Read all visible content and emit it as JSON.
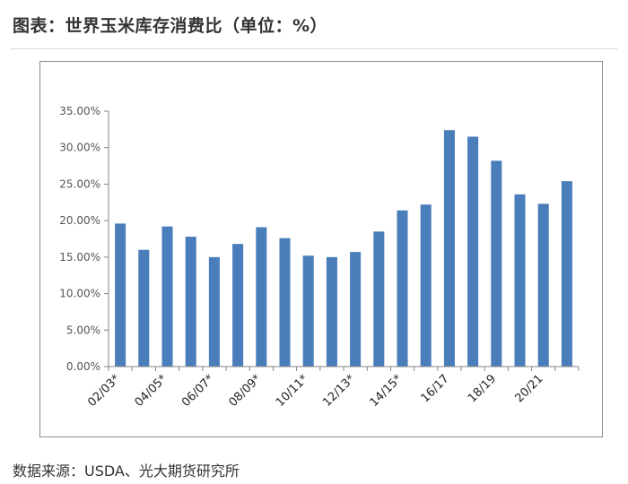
{
  "header": {
    "title": "图表：世界玉米库存消费比（单位：%）"
  },
  "footer": {
    "source": "数据来源：USDA、光大期货研究所"
  },
  "colors": {
    "bar": "#4a7ebb",
    "axis": "#868686"
  },
  "chart_data": {
    "type": "bar",
    "title": "图表：世界玉米库存消费比（单位：%）",
    "xlabel": "",
    "ylabel": "",
    "ylim": [
      0,
      35
    ],
    "y_ticks": [
      0,
      5,
      10,
      15,
      20,
      25,
      30,
      35
    ],
    "y_tick_labels": [
      "0.00%",
      "5.00%",
      "10.00%",
      "15.00%",
      "20.00%",
      "25.00%",
      "30.00%",
      "35.00%"
    ],
    "grid": false,
    "legend": "none",
    "categories": [
      "02/03*",
      "",
      "04/05*",
      "",
      "06/07*",
      "",
      "08/09*",
      "",
      "10/11*",
      "",
      "12/13*",
      "",
      "14/15*",
      "",
      "16/17",
      "",
      "18/19",
      "",
      "20/21",
      ""
    ],
    "values": [
      19.6,
      16.0,
      19.2,
      17.8,
      15.0,
      16.8,
      19.1,
      17.6,
      15.2,
      15.0,
      15.7,
      18.5,
      21.4,
      22.2,
      32.4,
      31.5,
      28.2,
      23.6,
      22.3,
      25.4
    ]
  }
}
